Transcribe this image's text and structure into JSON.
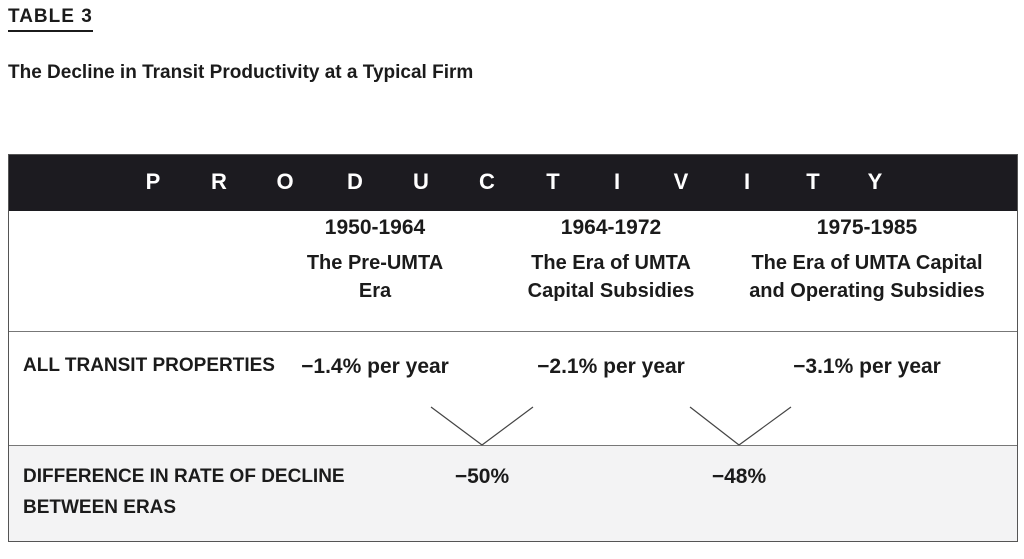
{
  "table_label": "TABLE 3",
  "title": "The Decline in Transit Productivity at a Typical Firm",
  "header_band": {
    "word": "PRODUCTIVITY",
    "letters": [
      "P",
      "R",
      "O",
      "D",
      "U",
      "C",
      "T",
      "I",
      "V",
      "I",
      "T",
      "Y"
    ]
  },
  "eras": [
    {
      "years": "1950-1964",
      "name_line1": "The Pre-UMTA",
      "name_line2": "Era"
    },
    {
      "years": "1964-1972",
      "name_line1": "The Era of UMTA",
      "name_line2": "Capital Subsidies"
    },
    {
      "years": "1975-1985",
      "name_line1": "The Era of UMTA Capital",
      "name_line2": "and Operating Subsidies"
    }
  ],
  "rows": {
    "all_transit": {
      "label": "ALL TRANSIT PROPERTIES",
      "values": [
        "−1.4% per year",
        "−2.1% per year",
        "−3.1% per year"
      ]
    },
    "difference": {
      "label_line1": "DIFFERENCE IN RATE OF DECLINE",
      "label_line2": "BETWEEN ERAS",
      "values": [
        "−50%",
        "−48%"
      ]
    }
  },
  "colors": {
    "band_background": "#1c1b20",
    "band_text": "#ffffff",
    "row_shade": "#f3f3f4"
  }
}
